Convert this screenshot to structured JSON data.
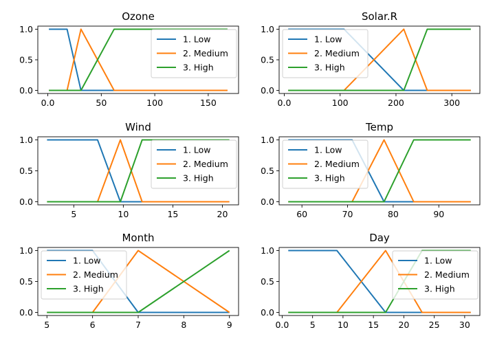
{
  "chart_data": [
    {
      "type": "line",
      "title": "Ozone",
      "xlabel": "",
      "ylabel": "",
      "xlim": [
        -9.35,
        178.35
      ],
      "ylim": [
        -0.05,
        1.05
      ],
      "xticks": [
        0,
        50,
        100,
        150
      ],
      "yticks": [
        0.0,
        0.5,
        1.0
      ],
      "legend": "upper right",
      "series": [
        {
          "name": "1. Low",
          "color": "#1f77b4",
          "x": [
            1,
            18,
            31,
            168
          ],
          "y": [
            1,
            1,
            0,
            0
          ]
        },
        {
          "name": "2. Medium",
          "color": "#ff7f0e",
          "x": [
            1,
            18,
            31,
            62,
            168
          ],
          "y": [
            0,
            0,
            1,
            0,
            0
          ]
        },
        {
          "name": "3. High",
          "color": "#2ca02c",
          "x": [
            1,
            31,
            62,
            168
          ],
          "y": [
            0,
            0,
            1,
            1
          ]
        }
      ]
    },
    {
      "type": "line",
      "title": "Solar.R",
      "xlabel": "",
      "ylabel": "",
      "xlim": [
        -9.2,
        350.2
      ],
      "ylim": [
        -0.05,
        1.05
      ],
      "xticks": [
        0,
        100,
        200,
        300
      ],
      "yticks": [
        0.0,
        0.5,
        1.0
      ],
      "legend": "upper left",
      "series": [
        {
          "name": "1. Low",
          "color": "#1f77b4",
          "x": [
            7,
            107,
            214,
            334
          ],
          "y": [
            1,
            1,
            0,
            0
          ]
        },
        {
          "name": "2. Medium",
          "color": "#ff7f0e",
          "x": [
            7,
            107,
            214,
            256,
            334
          ],
          "y": [
            0,
            0,
            1,
            0,
            0
          ]
        },
        {
          "name": "3. High",
          "color": "#2ca02c",
          "x": [
            7,
            214,
            256,
            334
          ],
          "y": [
            0,
            0,
            1,
            1
          ]
        }
      ]
    },
    {
      "type": "line",
      "title": "Wind",
      "xlabel": "",
      "ylabel": "",
      "xlim": [
        1.37,
        21.63
      ],
      "ylim": [
        -0.05,
        1.05
      ],
      "xticks": [
        5,
        10,
        15,
        20
      ],
      "yticks": [
        0.0,
        0.5,
        1.0
      ],
      "legend": "upper right",
      "series": [
        {
          "name": "1. Low",
          "color": "#1f77b4",
          "x": [
            2.3,
            7.4,
            9.7,
            20.7
          ],
          "y": [
            1,
            1,
            0,
            0
          ]
        },
        {
          "name": "2. Medium",
          "color": "#ff7f0e",
          "x": [
            2.3,
            7.4,
            9.7,
            11.9,
            20.7
          ],
          "y": [
            0,
            0,
            1,
            0,
            0
          ]
        },
        {
          "name": "3. High",
          "color": "#2ca02c",
          "x": [
            2.3,
            9.7,
            11.9,
            20.7
          ],
          "y": [
            0,
            0,
            1,
            1
          ]
        }
      ]
    },
    {
      "type": "line",
      "title": "Temp",
      "xlabel": "",
      "ylabel": "",
      "xlim": [
        55,
        99
      ],
      "ylim": [
        -0.05,
        1.05
      ],
      "xticks": [
        60,
        70,
        80,
        90
      ],
      "yticks": [
        0.0,
        0.5,
        1.0
      ],
      "legend": "upper left",
      "series": [
        {
          "name": "1. Low",
          "color": "#1f77b4",
          "x": [
            57,
            71,
            78,
            97
          ],
          "y": [
            1,
            1,
            0,
            0
          ]
        },
        {
          "name": "2. Medium",
          "color": "#ff7f0e",
          "x": [
            57,
            71,
            78,
            84.5,
            97
          ],
          "y": [
            0,
            0,
            1,
            0,
            0
          ]
        },
        {
          "name": "3. High",
          "color": "#2ca02c",
          "x": [
            57,
            78,
            84.5,
            97
          ],
          "y": [
            0,
            0,
            1,
            1
          ]
        }
      ]
    },
    {
      "type": "line",
      "title": "Month",
      "xlabel": "",
      "ylabel": "",
      "xlim": [
        4.8,
        9.2
      ],
      "ylim": [
        -0.05,
        1.05
      ],
      "xticks": [
        5,
        6,
        7,
        8,
        9
      ],
      "yticks": [
        0.0,
        0.5,
        1.0
      ],
      "legend": "upper left",
      "series": [
        {
          "name": "1. Low",
          "color": "#1f77b4",
          "x": [
            5,
            6,
            7,
            9
          ],
          "y": [
            1,
            1,
            0,
            0
          ]
        },
        {
          "name": "2. Medium",
          "color": "#ff7f0e",
          "x": [
            5,
            6,
            7,
            9
          ],
          "y": [
            0,
            0,
            1,
            0
          ]
        },
        {
          "name": "3. High",
          "color": "#2ca02c",
          "x": [
            5,
            7,
            9
          ],
          "y": [
            0,
            0,
            1
          ]
        }
      ]
    },
    {
      "type": "line",
      "title": "Day",
      "xlabel": "",
      "ylabel": "",
      "xlim": [
        -0.5,
        32.5
      ],
      "ylim": [
        -0.05,
        1.05
      ],
      "xticks": [
        0,
        5,
        10,
        15,
        20,
        25,
        30
      ],
      "yticks": [
        0.0,
        0.5,
        1.0
      ],
      "legend": "upper right",
      "series": [
        {
          "name": "1. Low",
          "color": "#1f77b4",
          "x": [
            1,
            9,
            17,
            31
          ],
          "y": [
            1,
            1,
            0,
            0
          ]
        },
        {
          "name": "2. Medium",
          "color": "#ff7f0e",
          "x": [
            1,
            9,
            17,
            23,
            31
          ],
          "y": [
            0,
            0,
            1,
            0,
            0
          ]
        },
        {
          "name": "3. High",
          "color": "#2ca02c",
          "x": [
            1,
            17,
            23,
            31
          ],
          "y": [
            0,
            0,
            1,
            1
          ]
        }
      ]
    }
  ]
}
